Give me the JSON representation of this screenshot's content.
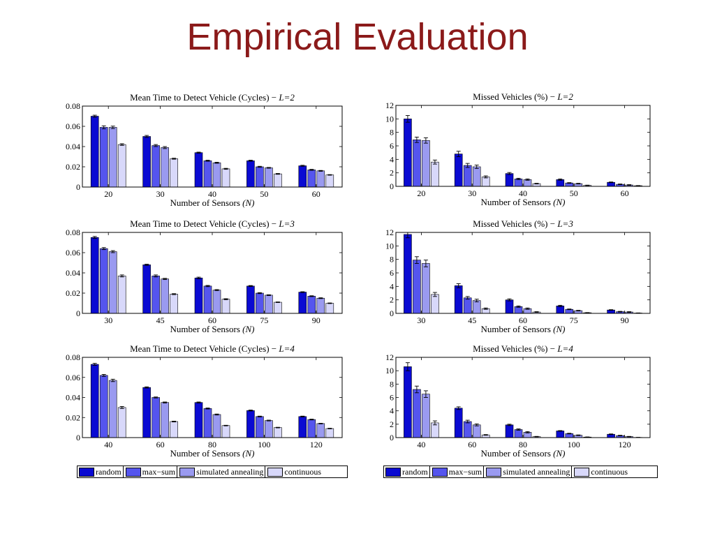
{
  "slide": {
    "title": "Empirical Evaluation"
  },
  "legend": {
    "items": [
      {
        "label": "random",
        "color": "#0a0ad2"
      },
      {
        "label": "max−sum",
        "color": "#5555ee"
      },
      {
        "label": "simulated annealing",
        "color": "#9a9af0"
      },
      {
        "label": "continuous",
        "color": "#d8d8fa"
      }
    ]
  },
  "chart_data": [
    {
      "type": "bar",
      "title": "Mean Time to Detect Vehicle (Cycles) − ",
      "title_param": "L=2",
      "xlabel": "Number of Sensors ",
      "xlabel_var": "(N)",
      "ylabel": "",
      "ylim": [
        0,
        0.08
      ],
      "yticks": [
        "0",
        "0.02",
        "0.04",
        "0.06",
        "0.08"
      ],
      "categories": [
        "20",
        "30",
        "40",
        "50",
        "60"
      ],
      "series": [
        {
          "name": "random",
          "values": [
            0.07,
            0.05,
            0.034,
            0.026,
            0.021
          ],
          "errors": [
            0.001,
            0.001,
            0.0005,
            0.0005,
            0.0005
          ]
        },
        {
          "name": "max−sum",
          "values": [
            0.059,
            0.041,
            0.026,
            0.02,
            0.017
          ],
          "errors": [
            0.0015,
            0.001,
            0.0005,
            0.0005,
            0.0005
          ]
        },
        {
          "name": "simulated annealing",
          "values": [
            0.059,
            0.039,
            0.024,
            0.019,
            0.016
          ],
          "errors": [
            0.0012,
            0.001,
            0.0005,
            0.0004,
            0.0004
          ]
        },
        {
          "name": "continuous",
          "values": [
            0.042,
            0.028,
            0.018,
            0.013,
            0.012
          ],
          "errors": [
            0.0008,
            0.0005,
            0.0005,
            0.0004,
            0.0003
          ]
        }
      ],
      "grid": false,
      "legend": "below"
    },
    {
      "type": "bar",
      "title": "Missed Vehicles (%) − ",
      "title_param": "L=2",
      "xlabel": "Number of Sensors ",
      "xlabel_var": "(N)",
      "ylabel": "",
      "ylim": [
        0,
        12
      ],
      "yticks": [
        "0",
        "2",
        "4",
        "6",
        "8",
        "10",
        "12"
      ],
      "categories": [
        "20",
        "30",
        "40",
        "50",
        "60"
      ],
      "series": [
        {
          "name": "random",
          "values": [
            10.0,
            4.8,
            1.9,
            1.0,
            0.6
          ],
          "errors": [
            0.5,
            0.4,
            0.15,
            0.1,
            0.05
          ]
        },
        {
          "name": "max−sum",
          "values": [
            6.9,
            3.1,
            1.1,
            0.5,
            0.3
          ],
          "errors": [
            0.4,
            0.3,
            0.1,
            0.05,
            0.05
          ]
        },
        {
          "name": "simulated annealing",
          "values": [
            6.8,
            2.9,
            1.0,
            0.4,
            0.2
          ],
          "errors": [
            0.4,
            0.25,
            0.1,
            0.05,
            0.05
          ]
        },
        {
          "name": "continuous",
          "values": [
            3.6,
            1.4,
            0.4,
            0.15,
            0.1
          ],
          "errors": [
            0.3,
            0.15,
            0.05,
            0.03,
            0.02
          ]
        }
      ],
      "grid": false,
      "legend": "below"
    },
    {
      "type": "bar",
      "title": "Mean Time to Detect Vehicle (Cycles) − ",
      "title_param": "L=3",
      "xlabel": "Number of Sensors ",
      "xlabel_var": "(N)",
      "ylabel": "",
      "ylim": [
        0,
        0.08
      ],
      "yticks": [
        "0",
        "0.02",
        "0.04",
        "0.06",
        "0.08"
      ],
      "categories": [
        "30",
        "45",
        "60",
        "75",
        "90"
      ],
      "series": [
        {
          "name": "random",
          "values": [
            0.075,
            0.048,
            0.035,
            0.027,
            0.021
          ],
          "errors": [
            0.001,
            0.0006,
            0.0008,
            0.0005,
            0.0004
          ]
        },
        {
          "name": "max−sum",
          "values": [
            0.064,
            0.037,
            0.027,
            0.02,
            0.017
          ],
          "errors": [
            0.001,
            0.001,
            0.0006,
            0.0005,
            0.0004
          ]
        },
        {
          "name": "simulated annealing",
          "values": [
            0.061,
            0.034,
            0.023,
            0.018,
            0.015
          ],
          "errors": [
            0.001,
            0.0006,
            0.0005,
            0.0004,
            0.0004
          ]
        },
        {
          "name": "continuous",
          "values": [
            0.037,
            0.019,
            0.014,
            0.011,
            0.01
          ],
          "errors": [
            0.001,
            0.0005,
            0.0005,
            0.0003,
            0.0003
          ]
        }
      ],
      "grid": false,
      "legend": "below"
    },
    {
      "type": "bar",
      "title": "Missed Vehicles (%) − ",
      "title_param": "L=3",
      "xlabel": "Number of Sensors ",
      "xlabel_var": "(N)",
      "ylabel": "",
      "ylim": [
        0,
        12
      ],
      "yticks": [
        "0",
        "2",
        "4",
        "6",
        "8",
        "10",
        "12"
      ],
      "categories": [
        "30",
        "45",
        "60",
        "75",
        "90"
      ],
      "series": [
        {
          "name": "random",
          "values": [
            11.7,
            4.1,
            2.0,
            1.1,
            0.5
          ],
          "errors": [
            0.5,
            0.3,
            0.15,
            0.1,
            0.05
          ]
        },
        {
          "name": "max−sum",
          "values": [
            7.9,
            2.3,
            1.0,
            0.6,
            0.25
          ],
          "errors": [
            0.5,
            0.2,
            0.1,
            0.05,
            0.05
          ]
        },
        {
          "name": "simulated annealing",
          "values": [
            7.4,
            1.9,
            0.7,
            0.4,
            0.2
          ],
          "errors": [
            0.5,
            0.2,
            0.1,
            0.05,
            0.05
          ]
        },
        {
          "name": "continuous",
          "values": [
            2.8,
            0.7,
            0.2,
            0.1,
            0.05
          ],
          "errors": [
            0.3,
            0.1,
            0.05,
            0.02,
            0.02
          ]
        }
      ],
      "grid": false,
      "legend": "below"
    },
    {
      "type": "bar",
      "title": "Mean Time to Detect Vehicle (Cycles) − ",
      "title_param": "L=4",
      "xlabel": "Number of Sensors ",
      "xlabel_var": "(N)",
      "ylabel": "",
      "ylim": [
        0,
        0.08
      ],
      "yticks": [
        "0",
        "0.02",
        "0.04",
        "0.06",
        "0.08"
      ],
      "categories": [
        "40",
        "60",
        "80",
        "100",
        "120"
      ],
      "series": [
        {
          "name": "random",
          "values": [
            0.073,
            0.05,
            0.035,
            0.027,
            0.021
          ],
          "errors": [
            0.001,
            0.0006,
            0.0005,
            0.0005,
            0.0004
          ]
        },
        {
          "name": "max−sum",
          "values": [
            0.062,
            0.04,
            0.029,
            0.021,
            0.018
          ],
          "errors": [
            0.001,
            0.0005,
            0.0005,
            0.0004,
            0.0004
          ]
        },
        {
          "name": "simulated annealing",
          "values": [
            0.057,
            0.035,
            0.023,
            0.017,
            0.014
          ],
          "errors": [
            0.0012,
            0.0005,
            0.0005,
            0.0004,
            0.0003
          ]
        },
        {
          "name": "continuous",
          "values": [
            0.03,
            0.016,
            0.012,
            0.01,
            0.009
          ],
          "errors": [
            0.001,
            0.0004,
            0.0003,
            0.0003,
            0.0003
          ]
        }
      ],
      "grid": false,
      "legend": "below"
    },
    {
      "type": "bar",
      "title": "Missed Vehicles (%) − ",
      "title_param": "L=4",
      "xlabel": "Number of Sensors ",
      "xlabel_var": "(N)",
      "ylabel": "",
      "ylim": [
        0,
        12
      ],
      "yticks": [
        "0",
        "2",
        "4",
        "6",
        "8",
        "10",
        "12"
      ],
      "categories": [
        "40",
        "60",
        "80",
        "100",
        "120"
      ],
      "series": [
        {
          "name": "random",
          "values": [
            10.6,
            4.4,
            1.9,
            1.0,
            0.5
          ],
          "errors": [
            0.6,
            0.2,
            0.1,
            0.05,
            0.05
          ]
        },
        {
          "name": "max−sum",
          "values": [
            7.2,
            2.4,
            1.2,
            0.6,
            0.3
          ],
          "errors": [
            0.5,
            0.2,
            0.1,
            0.05,
            0.05
          ]
        },
        {
          "name": "simulated annealing",
          "values": [
            6.5,
            1.9,
            0.8,
            0.35,
            0.15
          ],
          "errors": [
            0.5,
            0.15,
            0.1,
            0.05,
            0.03
          ]
        },
        {
          "name": "continuous",
          "values": [
            2.2,
            0.4,
            0.15,
            0.08,
            0.03
          ],
          "errors": [
            0.3,
            0.05,
            0.03,
            0.02,
            0.01
          ]
        }
      ],
      "grid": false,
      "legend": "below"
    }
  ]
}
